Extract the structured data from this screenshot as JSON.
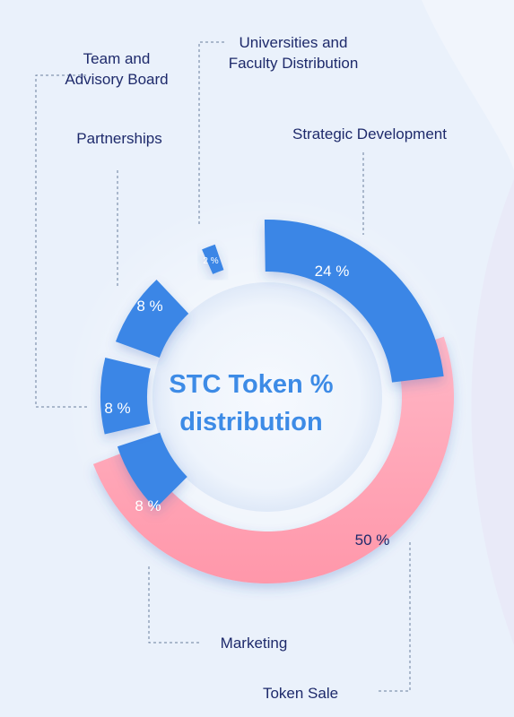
{
  "title_lines": [
    "STC Token %",
    "distribution"
  ],
  "colors": {
    "background": "#eaf1fb",
    "segment_blue": "#3a86e6",
    "segment_pink": "#ff9eb0",
    "label_text": "#1e2a6b",
    "title_text": "#3d8be6",
    "leader_line": "#6a7f9c"
  },
  "chart_data": {
    "type": "pie",
    "style": "donut",
    "title": "STC Token % distribution",
    "series": [
      {
        "name": "STC Token distribution",
        "values": [
          {
            "label": "Strategic Development",
            "value": 24,
            "value_label": "24 %",
            "label_lines": [
              "Strategic Development"
            ]
          },
          {
            "label": "Token Sale",
            "value": 50,
            "value_label": "50 %",
            "label_lines": [
              "Token Sale"
            ]
          },
          {
            "label": "Marketing",
            "value": 8,
            "value_label": "8 %",
            "label_lines": [
              "Marketing"
            ]
          },
          {
            "label": "Team and Advisory Board",
            "value": 8,
            "value_label": "8 %",
            "label_lines": [
              "Team and",
              "Advisory Board"
            ]
          },
          {
            "label": "Partnerships",
            "value": 8,
            "value_label": "8 %",
            "label_lines": [
              "Partnerships"
            ]
          },
          {
            "label": "Universities and Faculty Distribution",
            "value": 2,
            "value_label": "2 %",
            "label_lines": [
              "Universities and",
              "Faculty Distribution"
            ]
          }
        ]
      }
    ]
  }
}
